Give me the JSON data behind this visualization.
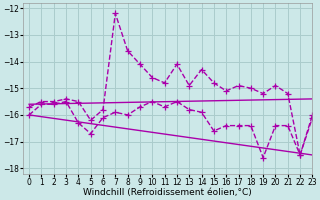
{
  "xlabel": "Windchill (Refroidissement éolien,°C)",
  "xlim": [
    -0.5,
    23
  ],
  "ylim": [
    -18.2,
    -11.8
  ],
  "yticks": [
    -18,
    -17,
    -16,
    -15,
    -14,
    -13,
    -12
  ],
  "xticks": [
    0,
    1,
    2,
    3,
    4,
    5,
    6,
    7,
    8,
    9,
    10,
    11,
    12,
    13,
    14,
    15,
    16,
    17,
    18,
    19,
    20,
    21,
    22,
    23
  ],
  "background_color": "#cce8e8",
  "grid_color": "#aacccc",
  "line_color": "#aa00aa",
  "lines": [
    {
      "x": [
        0,
        1,
        2,
        3,
        4,
        5,
        6,
        7,
        8,
        9,
        10,
        11,
        12,
        13,
        14,
        15,
        16,
        17,
        18,
        19,
        20,
        21,
        22,
        23
      ],
      "y": [
        -15.7,
        -15.5,
        -15.5,
        -15.4,
        -15.5,
        -16.2,
        -15.8,
        -12.2,
        -13.6,
        -14.1,
        -14.6,
        -14.8,
        -14.1,
        -14.9,
        -14.3,
        -14.8,
        -15.1,
        -14.9,
        -15.0,
        -15.2,
        -14.9,
        -15.2,
        -17.5,
        -16.1
      ],
      "has_marker": true
    },
    {
      "x": [
        0,
        1,
        2,
        3,
        4,
        5,
        6,
        7,
        8,
        9,
        10,
        11,
        12,
        13,
        14,
        15,
        16,
        17,
        18,
        19,
        20,
        21,
        22,
        23
      ],
      "y": [
        -16.0,
        -15.6,
        -15.6,
        -15.5,
        -16.3,
        -16.7,
        -16.1,
        -15.9,
        -16.0,
        -15.7,
        -15.5,
        -15.7,
        -15.5,
        -15.8,
        -15.9,
        -16.6,
        -16.4,
        -16.4,
        -16.4,
        -17.6,
        -16.4,
        -16.4,
        -17.5,
        -16.0
      ],
      "has_marker": true
    },
    {
      "x": [
        0,
        23
      ],
      "y": [
        -15.6,
        -15.4
      ],
      "has_marker": false
    },
    {
      "x": [
        0,
        23
      ],
      "y": [
        -16.0,
        -17.5
      ],
      "has_marker": false
    }
  ],
  "marker": "+",
  "markersize": 4,
  "linewidth": 1.0,
  "tick_fontsize": 5.5,
  "xlabel_fontsize": 6.5
}
